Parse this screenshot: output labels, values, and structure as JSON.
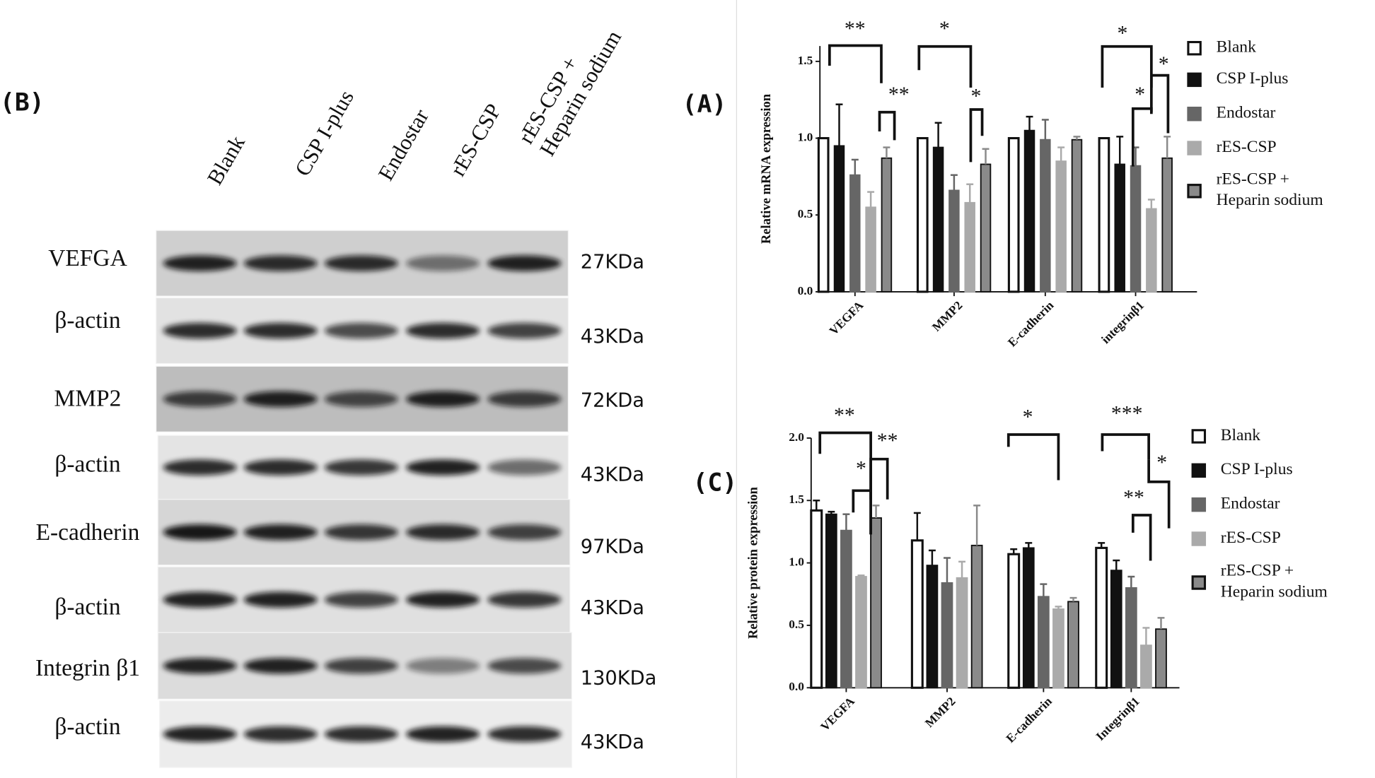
{
  "panels": [
    "(A)",
    "(C)"
  ],
  "blot": {
    "panel": "(B)",
    "lanes": [
      "Blank",
      "CSP I-plus",
      "Endostar",
      "rES-CSP",
      "rES-CSP + Heparin sodium"
    ],
    "rows": [
      {
        "protein": "VEFGA",
        "size": "27KDa"
      },
      {
        "protein": "β-actin",
        "size": "43KDa"
      },
      {
        "protein": "MMP2",
        "size": "72KDa"
      },
      {
        "protein": "β-actin",
        "size": "43KDa"
      },
      {
        "protein": "E-cadherin",
        "size": "97KDa"
      },
      {
        "protein": "β-actin",
        "size": "43KDa"
      },
      {
        "protein": "Integrin β1",
        "size": "130KDa"
      },
      {
        "protein": "β-actin",
        "size": "43KDa"
      }
    ]
  },
  "chart_data": [
    {
      "type": "bar",
      "y_label": "Relative mRNA expression",
      "categories": [
        "VEGFA",
        "MMP2",
        "E-cadherin",
        "integrinβ1"
      ],
      "ylim": [
        0,
        1.6
      ],
      "yticks": [
        {
          "value": 0,
          "label": "0.0"
        },
        {
          "value": 0.5,
          "label": "0.5"
        },
        {
          "value": 1,
          "label": "1.0"
        },
        {
          "value": 1.5,
          "label": "1.5"
        }
      ],
      "series": [
        {
          "name": "Blank",
          "color": "#ffffff",
          "values": [
            1.0,
            1.0,
            1.0,
            1.0
          ],
          "errors": [
            0,
            0,
            0,
            0
          ]
        },
        {
          "name": "CSP I-plus",
          "color": "#111111",
          "values": [
            0.95,
            0.94,
            1.05,
            0.83
          ],
          "errors": [
            0.27,
            0.16,
            0.09,
            0.18
          ]
        },
        {
          "name": "Endostar",
          "color": "#666666",
          "values": [
            0.76,
            0.66,
            0.99,
            0.82
          ],
          "errors": [
            0.1,
            0.1,
            0.13,
            0.12
          ]
        },
        {
          "name": "rES-CSP",
          "color": "#aaaaaa",
          "values": [
            0.55,
            0.58,
            0.85,
            0.54
          ],
          "errors": [
            0.1,
            0.12,
            0.09,
            0.06
          ]
        },
        {
          "name": "rES-CSP + Heparin sodium",
          "color": "#8a8a8a",
          "values": [
            0.87,
            0.83,
            0.99,
            0.87
          ],
          "errors": [
            0.07,
            0.1,
            0.02,
            0.14
          ]
        }
      ],
      "annotations": [
        "**",
        "**",
        "*",
        "*",
        "*",
        "*",
        "*"
      ]
    },
    {
      "type": "bar",
      "y_label": "Relative protein expression",
      "categories": [
        "VEGFA",
        "MMP2",
        "E-cadherin",
        "Integrinβ1"
      ],
      "ylim": [
        0,
        2.0
      ],
      "yticks": [
        {
          "value": 0,
          "label": "0.0"
        },
        {
          "value": 0.5,
          "label": "0.5"
        },
        {
          "value": 1,
          "label": "1.0"
        },
        {
          "value": 1.5,
          "label": "1.5"
        },
        {
          "value": 2,
          "label": "2.0"
        }
      ],
      "series": [
        {
          "name": "Blank",
          "color": "#ffffff",
          "values": [
            1.42,
            1.18,
            1.07,
            1.12
          ],
          "errors": [
            0.08,
            0.22,
            0.04,
            0.04
          ]
        },
        {
          "name": "CSP I-plus",
          "color": "#111111",
          "values": [
            1.39,
            0.98,
            1.12,
            0.94
          ],
          "errors": [
            0.02,
            0.12,
            0.04,
            0.08
          ]
        },
        {
          "name": "Endostar",
          "color": "#666666",
          "values": [
            1.26,
            0.84,
            0.73,
            0.8
          ],
          "errors": [
            0.13,
            0.2,
            0.1,
            0.09
          ]
        },
        {
          "name": "rES-CSP",
          "color": "#aaaaaa",
          "values": [
            0.89,
            0.88,
            0.63,
            0.34
          ],
          "errors": [
            0.01,
            0.13,
            0.02,
            0.14
          ]
        },
        {
          "name": "rES-CSP + Heparin sodium",
          "color": "#8a8a8a",
          "values": [
            1.36,
            1.14,
            0.69,
            0.47
          ],
          "errors": [
            0.1,
            0.32,
            0.03,
            0.09
          ]
        }
      ],
      "annotations": [
        "**",
        "**",
        "*",
        "*",
        "***",
        "*",
        "**"
      ]
    }
  ]
}
